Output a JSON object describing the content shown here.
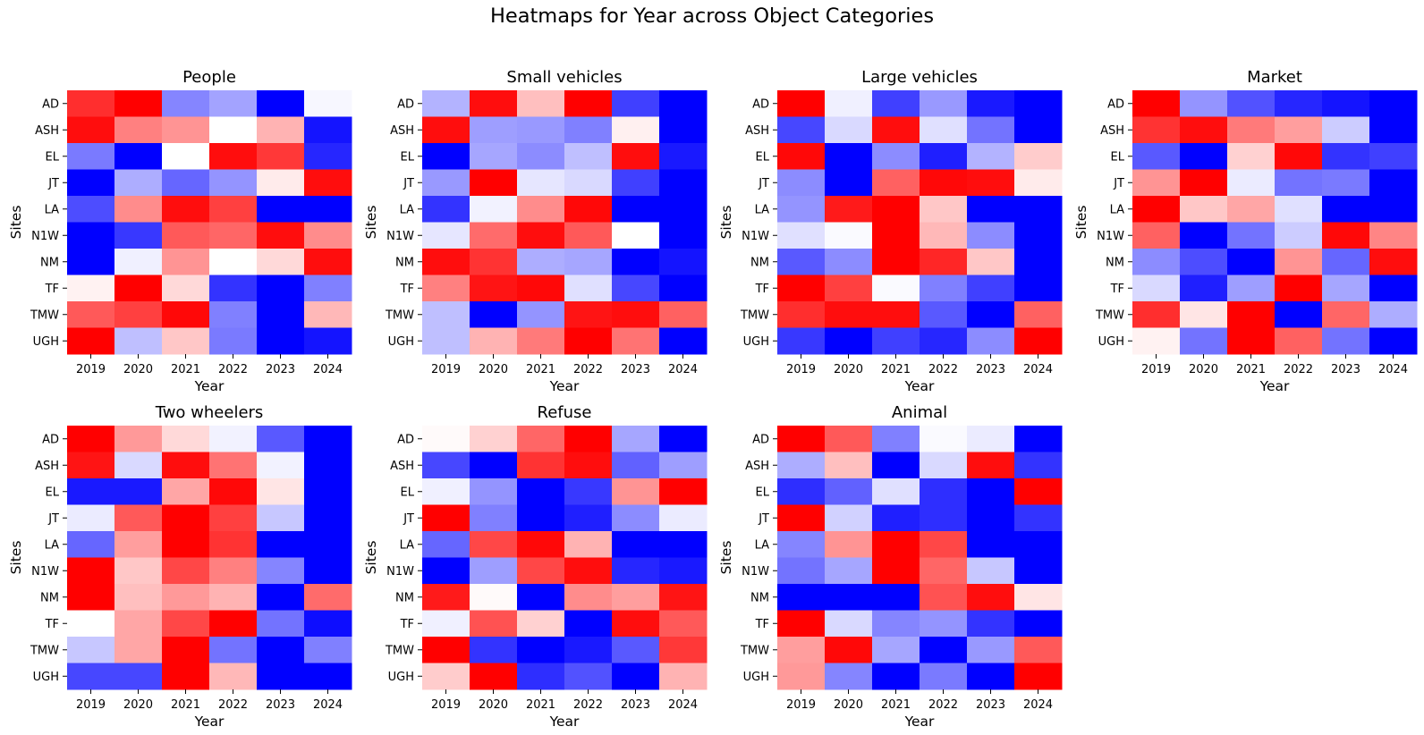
{
  "figure": {
    "title": "Heatmaps for Year across Object Categories"
  },
  "chart_data": [
    {
      "type": "heatmap",
      "title": "People",
      "xlabel": "Year",
      "ylabel": "Sites",
      "x": [
        "2019",
        "2020",
        "2021",
        "2022",
        "2023",
        "2024"
      ],
      "y": [
        "AD",
        "ASH",
        "EL",
        "JT",
        "LA",
        "N1W",
        "NM",
        "TF",
        "TMW",
        "UGH"
      ],
      "colormap": "bwr",
      "vrange": [
        -1,
        1
      ],
      "z": [
        [
          0.82,
          1.0,
          -0.48,
          -0.36,
          -1.0,
          -0.03
        ],
        [
          0.95,
          0.5,
          0.42,
          0.0,
          0.3,
          -0.92
        ],
        [
          -0.52,
          -1.0,
          0.0,
          0.95,
          0.78,
          -0.85
        ],
        [
          -1.0,
          -0.32,
          -0.6,
          -0.42,
          0.08,
          0.95
        ],
        [
          -0.7,
          0.45,
          0.95,
          0.75,
          -1.0,
          -1.0
        ],
        [
          -1.0,
          -0.78,
          0.65,
          0.6,
          0.95,
          0.45
        ],
        [
          -1.0,
          -0.06,
          0.42,
          0.0,
          0.15,
          0.95
        ],
        [
          0.05,
          1.0,
          0.15,
          -0.8,
          -1.0,
          -0.5
        ],
        [
          0.65,
          0.75,
          0.97,
          -0.5,
          -1.0,
          0.28
        ],
        [
          1.0,
          -0.25,
          0.22,
          -0.52,
          -1.0,
          -0.92
        ]
      ]
    },
    {
      "type": "heatmap",
      "title": "Small vehicles",
      "xlabel": "Year",
      "ylabel": "Sites",
      "x": [
        "2019",
        "2020",
        "2021",
        "2022",
        "2023",
        "2024"
      ],
      "y": [
        "AD",
        "ASH",
        "EL",
        "JT",
        "LA",
        "N1W",
        "NM",
        "TF",
        "TMW",
        "UGH"
      ],
      "colormap": "bwr",
      "vrange": [
        -1,
        1
      ],
      "z": [
        [
          -0.3,
          0.95,
          0.25,
          1.0,
          -0.75,
          -1.0
        ],
        [
          0.95,
          -0.38,
          -0.4,
          -0.5,
          0.06,
          -1.0
        ],
        [
          -1.0,
          -0.35,
          -0.45,
          -0.25,
          0.95,
          -0.9
        ],
        [
          -0.4,
          1.0,
          -0.1,
          -0.15,
          -0.75,
          -1.0
        ],
        [
          -0.8,
          -0.05,
          0.45,
          0.97,
          -1.0,
          -1.0
        ],
        [
          -0.1,
          0.58,
          0.95,
          0.65,
          0.0,
          -1.0
        ],
        [
          0.95,
          0.8,
          -0.32,
          -0.35,
          -1.0,
          -0.92
        ],
        [
          0.5,
          0.92,
          0.97,
          -0.12,
          -0.72,
          -1.0
        ],
        [
          -0.25,
          -1.0,
          -0.42,
          0.92,
          0.95,
          0.62
        ],
        [
          -0.25,
          0.3,
          0.52,
          1.0,
          0.55,
          -1.0
        ]
      ]
    },
    {
      "type": "heatmap",
      "title": "Large vehicles",
      "xlabel": "Year",
      "ylabel": "Sites",
      "x": [
        "2019",
        "2020",
        "2021",
        "2022",
        "2023",
        "2024"
      ],
      "y": [
        "AD",
        "ASH",
        "EL",
        "JT",
        "LA",
        "N1W",
        "NM",
        "TF",
        "TMW",
        "UGH"
      ],
      "colormap": "bwr",
      "vrange": [
        -1,
        1
      ],
      "z": [
        [
          1.0,
          -0.06,
          -0.75,
          -0.4,
          -0.9,
          -1.0
        ],
        [
          -0.72,
          -0.15,
          0.95,
          -0.12,
          -0.55,
          -1.0
        ],
        [
          0.97,
          -1.0,
          -0.45,
          -0.88,
          -0.3,
          0.2
        ],
        [
          -0.45,
          -1.0,
          0.62,
          0.97,
          0.95,
          0.08
        ],
        [
          -0.42,
          0.9,
          1.0,
          0.22,
          -1.0,
          -1.0
        ],
        [
          -0.12,
          -0.02,
          1.0,
          0.28,
          -0.45,
          -1.0
        ],
        [
          -0.65,
          -0.45,
          1.0,
          0.85,
          0.22,
          -1.0
        ],
        [
          1.0,
          0.75,
          -0.02,
          -0.5,
          -0.75,
          -1.0
        ],
        [
          0.82,
          0.95,
          0.95,
          -0.65,
          -1.0,
          0.62
        ],
        [
          -0.78,
          -1.0,
          -0.75,
          -0.85,
          -0.45,
          1.0
        ]
      ]
    },
    {
      "type": "heatmap",
      "title": "Market",
      "xlabel": "Year",
      "ylabel": "Sites",
      "x": [
        "2019",
        "2020",
        "2021",
        "2022",
        "2023",
        "2024"
      ],
      "y": [
        "AD",
        "ASH",
        "EL",
        "JT",
        "LA",
        "N1W",
        "NM",
        "TF",
        "TMW",
        "UGH"
      ],
      "colormap": "bwr",
      "vrange": [
        -1,
        1
      ],
      "z": [
        [
          1.0,
          -0.42,
          -0.68,
          -0.85,
          -0.92,
          -1.0
        ],
        [
          0.8,
          0.95,
          0.52,
          0.38,
          -0.2,
          -1.0
        ],
        [
          -0.65,
          -1.0,
          0.18,
          0.97,
          -0.8,
          -0.75
        ],
        [
          0.42,
          1.0,
          -0.08,
          -0.55,
          -0.52,
          -1.0
        ],
        [
          1.0,
          0.22,
          0.35,
          -0.12,
          -1.0,
          -1.0
        ],
        [
          0.62,
          -1.0,
          -0.55,
          -0.2,
          0.97,
          0.48
        ],
        [
          -0.45,
          -0.7,
          -1.0,
          0.42,
          -0.6,
          0.95
        ],
        [
          -0.15,
          -0.88,
          -0.38,
          1.0,
          -0.35,
          -1.0
        ],
        [
          0.82,
          0.1,
          1.0,
          -1.0,
          0.6,
          -0.32
        ],
        [
          0.05,
          -0.55,
          1.0,
          0.62,
          -0.55,
          -1.0
        ]
      ]
    },
    {
      "type": "heatmap",
      "title": "Two wheelers",
      "xlabel": "Year",
      "ylabel": "Sites",
      "x": [
        "2019",
        "2020",
        "2021",
        "2022",
        "2023",
        "2024"
      ],
      "y": [
        "AD",
        "ASH",
        "EL",
        "JT",
        "LA",
        "N1W",
        "NM",
        "TF",
        "TMW",
        "UGH"
      ],
      "colormap": "bwr",
      "vrange": [
        -1,
        1
      ],
      "z": [
        [
          1.0,
          0.4,
          0.15,
          -0.05,
          -0.65,
          -1.0
        ],
        [
          0.92,
          -0.15,
          0.95,
          0.55,
          -0.05,
          -1.0
        ],
        [
          -0.9,
          -0.9,
          0.35,
          0.97,
          0.1,
          -1.0
        ],
        [
          -0.08,
          0.65,
          1.0,
          0.75,
          -0.22,
          -1.0
        ],
        [
          -0.6,
          0.38,
          1.0,
          0.8,
          -1.0,
          -1.0
        ],
        [
          1.0,
          0.22,
          0.72,
          0.5,
          -0.48,
          -1.0
        ],
        [
          1.0,
          0.25,
          0.4,
          0.3,
          -1.0,
          0.58
        ],
        [
          0.0,
          0.35,
          0.72,
          1.0,
          -0.55,
          -0.95
        ],
        [
          -0.22,
          0.35,
          1.0,
          -0.55,
          -1.0,
          -0.5
        ],
        [
          -0.72,
          -0.72,
          1.0,
          0.28,
          -1.0,
          -1.0
        ]
      ]
    },
    {
      "type": "heatmap",
      "title": "Refuse",
      "xlabel": "Year",
      "ylabel": "Sites",
      "x": [
        "2019",
        "2020",
        "2021",
        "2022",
        "2023",
        "2024"
      ],
      "y": [
        "AD",
        "ASH",
        "EL",
        "JT",
        "LA",
        "N1W",
        "NM",
        "TF",
        "TMW",
        "UGH"
      ],
      "colormap": "bwr",
      "vrange": [
        -1,
        1
      ],
      "z": [
        [
          0.02,
          0.18,
          0.6,
          1.0,
          -0.35,
          -1.0
        ],
        [
          -0.72,
          -1.0,
          0.8,
          0.95,
          -0.62,
          -0.38
        ],
        [
          -0.06,
          -0.42,
          -1.0,
          -0.78,
          0.42,
          1.0
        ],
        [
          1.0,
          -0.5,
          -1.0,
          -0.88,
          -0.45,
          -0.08
        ],
        [
          -0.6,
          0.72,
          0.97,
          0.3,
          -1.0,
          -1.0
        ],
        [
          -1.0,
          -0.38,
          0.72,
          0.95,
          -0.85,
          -0.9
        ],
        [
          0.9,
          0.02,
          -1.0,
          0.45,
          0.38,
          0.92
        ],
        [
          -0.06,
          0.68,
          0.18,
          -1.0,
          0.95,
          0.65
        ],
        [
          1.0,
          -0.8,
          -1.0,
          -0.9,
          -0.65,
          0.78
        ],
        [
          0.2,
          1.0,
          -0.82,
          -0.68,
          -1.0,
          0.3
        ]
      ]
    },
    {
      "type": "heatmap",
      "title": "Animal",
      "xlabel": "Year",
      "ylabel": "Sites",
      "x": [
        "2019",
        "2020",
        "2021",
        "2022",
        "2023",
        "2024"
      ],
      "y": [
        "AD",
        "ASH",
        "EL",
        "JT",
        "LA",
        "N1W",
        "NM",
        "TF",
        "TMW",
        "UGH"
      ],
      "colormap": "bwr",
      "vrange": [
        -1,
        1
      ],
      "z": [
        [
          1.0,
          0.65,
          -0.5,
          -0.02,
          -0.08,
          -1.0
        ],
        [
          -0.32,
          0.25,
          -1.0,
          -0.15,
          0.95,
          -0.8
        ],
        [
          -0.82,
          -0.62,
          -0.12,
          -0.82,
          -1.0,
          1.0
        ],
        [
          1.0,
          -0.18,
          -0.88,
          -0.82,
          -1.0,
          -0.8
        ],
        [
          -0.48,
          0.42,
          1.0,
          0.72,
          -1.0,
          -1.0
        ],
        [
          -0.55,
          -0.35,
          1.0,
          0.6,
          -0.22,
          -1.0
        ],
        [
          -1.0,
          -1.0,
          -1.0,
          0.68,
          0.95,
          0.1
        ],
        [
          1.0,
          -0.15,
          -0.48,
          -0.42,
          -0.8,
          -1.0
        ],
        [
          0.38,
          0.97,
          -0.35,
          -1.0,
          -0.4,
          0.65
        ],
        [
          0.4,
          -0.48,
          -1.0,
          -0.52,
          -1.0,
          1.0
        ]
      ]
    }
  ]
}
